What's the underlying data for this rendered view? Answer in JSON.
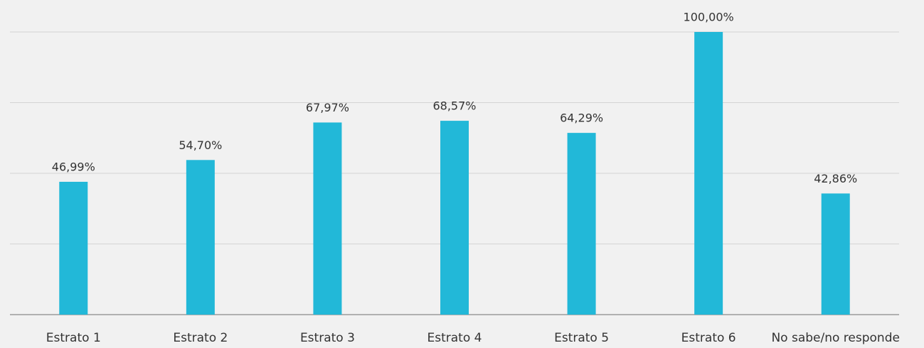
{
  "chart_data": {
    "type": "bar",
    "categories": [
      "Estrato 1",
      "Estrato 2",
      "Estrato 3",
      "Estrato 4",
      "Estrato 5",
      "Estrato 6",
      "No sabe/no responde"
    ],
    "values": [
      46.99,
      54.7,
      67.97,
      68.57,
      64.29,
      100.0,
      42.86
    ],
    "value_labels": [
      "46,99%",
      "54,70%",
      "67,97%",
      "68,57%",
      "64,29%",
      "100,00%",
      "42,86%"
    ],
    "color": "#22b8d8",
    "ylim": [
      0,
      100
    ],
    "yticks": [
      0,
      25,
      50,
      75,
      100
    ],
    "grid": true
  }
}
